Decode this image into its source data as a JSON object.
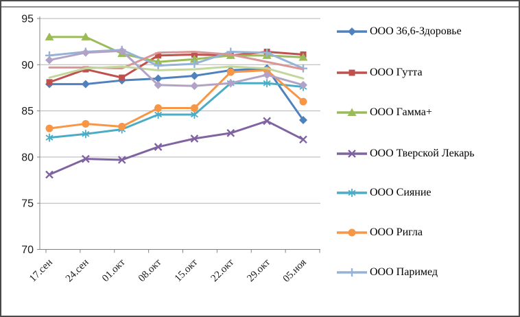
{
  "chart_data": {
    "type": "line",
    "title": "",
    "categories": [
      "17.сен",
      "24.сен",
      "01.окт",
      "08.окт",
      "15.окт",
      "22.окт",
      "29.окт",
      "05.ноя"
    ],
    "ylim": [
      70,
      95
    ],
    "yticks": [
      70,
      75,
      80,
      85,
      90,
      95
    ],
    "grid": true,
    "legend_position": "right",
    "series": [
      {
        "id": "ooo-366-zdorovye",
        "name": "ООО 36,6-Здоровье",
        "color": "#4F81BD",
        "marker": "diamond",
        "in_legend": true,
        "values": [
          87.9,
          87.9,
          88.3,
          88.5,
          88.8,
          89.4,
          89.6,
          84.0
        ]
      },
      {
        "id": "ooo-gutta",
        "name": "ООО Гутта",
        "color": "#C0504D",
        "marker": "square",
        "in_legend": true,
        "values": [
          88.1,
          89.5,
          88.6,
          91.0,
          91.1,
          91.0,
          91.4,
          91.1
        ]
      },
      {
        "id": "ooo-gamma-plus",
        "name": "ООО Гамма+",
        "color": "#9BBB59",
        "marker": "triangle",
        "in_legend": true,
        "values": [
          93.0,
          93.0,
          91.2,
          90.3,
          90.6,
          91.0,
          91.0,
          90.8
        ]
      },
      {
        "id": "ooo-tverskoy-lekar",
        "name": "ООО Тверской Лекарь",
        "color": "#8064A2",
        "marker": "x",
        "in_legend": true,
        "values": [
          78.1,
          79.8,
          79.7,
          81.1,
          82.0,
          82.6,
          83.9,
          81.9
        ]
      },
      {
        "id": "ooo-siyanie",
        "name": "ООО Сияние",
        "color": "#4BACC6",
        "marker": "star",
        "in_legend": true,
        "values": [
          82.1,
          82.5,
          83.0,
          84.6,
          84.6,
          88.0,
          88.0,
          87.6
        ]
      },
      {
        "id": "ooo-rigla",
        "name": "ООО Ригла",
        "color": "#F79646",
        "marker": "circle",
        "in_legend": true,
        "values": [
          83.1,
          83.6,
          83.3,
          85.3,
          85.3,
          89.2,
          89.4,
          86.0
        ]
      },
      {
        "id": "ooo-parimed",
        "name": "ООО Паримед",
        "color": "#95B3D7",
        "marker": "plus",
        "in_legend": true,
        "values": [
          91.0,
          91.4,
          91.6,
          89.9,
          90.1,
          91.4,
          91.3,
          89.6
        ]
      },
      {
        "id": "series-8",
        "name": "",
        "color": "#D99694",
        "marker": "none",
        "in_legend": false,
        "values": [
          89.7,
          89.7,
          89.6,
          91.3,
          91.4,
          91.1,
          90.3,
          89.5
        ]
      },
      {
        "id": "series-9",
        "name": "",
        "color": "#C3D69B",
        "marker": "none",
        "in_legend": false,
        "values": [
          88.6,
          89.6,
          89.8,
          89.4,
          89.5,
          89.8,
          89.6,
          88.5
        ]
      },
      {
        "id": "series-10",
        "name": "",
        "color": "#B3A2C7",
        "marker": "diamond",
        "in_legend": false,
        "values": [
          90.5,
          91.3,
          91.5,
          87.8,
          87.7,
          88.0,
          88.9,
          87.8
        ]
      }
    ]
  },
  "colors": {
    "background": "#ffffff",
    "border": "#4a4a4a",
    "top_strip": "#909090",
    "gridline": "#b3b3b3",
    "axis": "#808080",
    "text": "#000000"
  }
}
